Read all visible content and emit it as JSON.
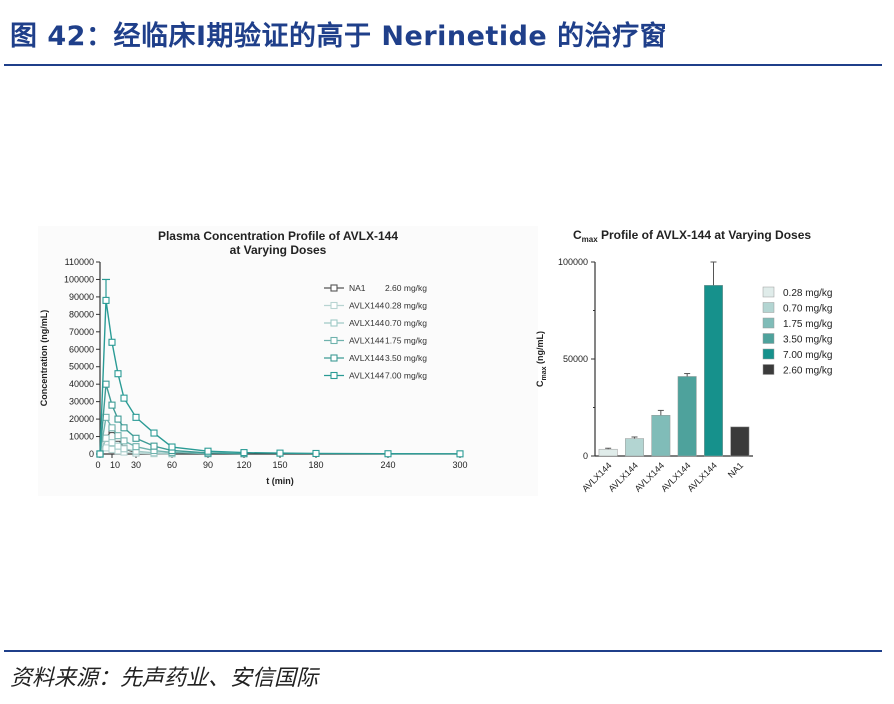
{
  "figure": {
    "title": "图 42：经临床Ⅰ期验证的高于 Nerinetide 的治疗窗",
    "source": "资料来源：先声药业、安信国际"
  },
  "chart_data": [
    {
      "type": "line",
      "title": "Plasma Concentration Profile of AVLX-144",
      "title_line2": "at Varying Doses",
      "xlabel": "t (min)",
      "ylabel": "Concentration (ng/mL)",
      "xlim": [
        0,
        300
      ],
      "ylim": [
        0,
        110000
      ],
      "x_ticks": [
        0,
        10,
        30,
        60,
        90,
        120,
        150,
        180,
        240,
        300
      ],
      "x_tick_labels": [
        "0",
        "10",
        "30",
        "60",
        "90",
        "120",
        "150",
        "180",
        "240",
        "300"
      ],
      "y_ticks": [
        0,
        10000,
        20000,
        30000,
        40000,
        50000,
        60000,
        70000,
        80000,
        90000,
        100000,
        110000
      ],
      "y_tick_labels": [
        "0",
        "10000",
        "20000",
        "30000",
        "40000",
        "50000",
        "60000",
        "70000",
        "80000",
        "90000",
        "100000",
        "110000"
      ],
      "legend_position": "top-right",
      "series": [
        {
          "name": "NA1",
          "dose": "2.60 mg/kg",
          "color": "#555555",
          "x": [
            0,
            5,
            10,
            15,
            20,
            30
          ],
          "y": [
            0,
            9000,
            14000,
            9000,
            3000,
            800
          ]
        },
        {
          "name": "AVLX144",
          "dose": "0.28 mg/kg",
          "color": "#b8d4d2",
          "x": [
            0,
            5,
            10,
            15,
            20,
            30,
            45,
            60
          ],
          "y": [
            0,
            3500,
            2600,
            1800,
            1100,
            500,
            200,
            80
          ]
        },
        {
          "name": "AVLX144",
          "dose": "0.70 mg/kg",
          "color": "#9fc9c6",
          "x": [
            0,
            5,
            10,
            15,
            20,
            30,
            45,
            60
          ],
          "y": [
            0,
            9000,
            6500,
            4500,
            3000,
            1600,
            700,
            300
          ]
        },
        {
          "name": "AVLX144",
          "dose": "1.75 mg/kg",
          "color": "#6fb2ad",
          "x": [
            0,
            5,
            10,
            15,
            20,
            30,
            45,
            60,
            90
          ],
          "y": [
            0,
            21000,
            15000,
            10500,
            7500,
            4200,
            2000,
            900,
            200
          ]
        },
        {
          "name": "AVLX144",
          "dose": "3.50 mg/kg",
          "color": "#3e9b95",
          "x": [
            0,
            5,
            10,
            15,
            20,
            30,
            45,
            60,
            90,
            120
          ],
          "y": [
            0,
            40000,
            28000,
            20000,
            15000,
            9000,
            4500,
            2000,
            600,
            150
          ]
        },
        {
          "name": "AVLX144",
          "dose": "7.00 mg/kg",
          "color": "#2a9b95",
          "x": [
            0,
            5,
            10,
            15,
            20,
            30,
            45,
            60,
            90,
            120,
            150,
            180,
            240,
            300
          ],
          "y": [
            0,
            88000,
            64000,
            46000,
            32000,
            21000,
            12000,
            4000,
            1600,
            800,
            500,
            300,
            150,
            100
          ],
          "err_top": 100000
        }
      ]
    },
    {
      "type": "bar",
      "title_prefix": "C",
      "title_sub": "max",
      "title_rest": " Profile of AVLX-144 at Varying Doses",
      "ylabel_prefix": "C",
      "ylabel_sub": "max",
      "ylabel_rest": " (ng/mL)",
      "ylim": [
        0,
        100000
      ],
      "y_ticks": [
        0,
        50000,
        100000
      ],
      "y_tick_labels": [
        "0",
        "50000",
        "100000"
      ],
      "legend_position": "right",
      "categories": [
        "AVLX144",
        "AVLX144",
        "AVLX144",
        "AVLX144",
        "AVLX144",
        "NA1"
      ],
      "dose_labels": [
        "0.28 mg/kg",
        "0.70 mg/kg",
        "1.75 mg/kg",
        "3.50 mg/kg",
        "7.00 mg/kg",
        "2.60 mg/kg"
      ],
      "values": [
        3500,
        9000,
        21000,
        41000,
        88000,
        15000
      ],
      "errors": [
        500,
        800,
        2500,
        1500,
        12000,
        0
      ],
      "colors": [
        "#e0ecea",
        "#b3d5d2",
        "#80bcb8",
        "#4ea29c",
        "#16918c",
        "#3b3b3b"
      ]
    }
  ]
}
